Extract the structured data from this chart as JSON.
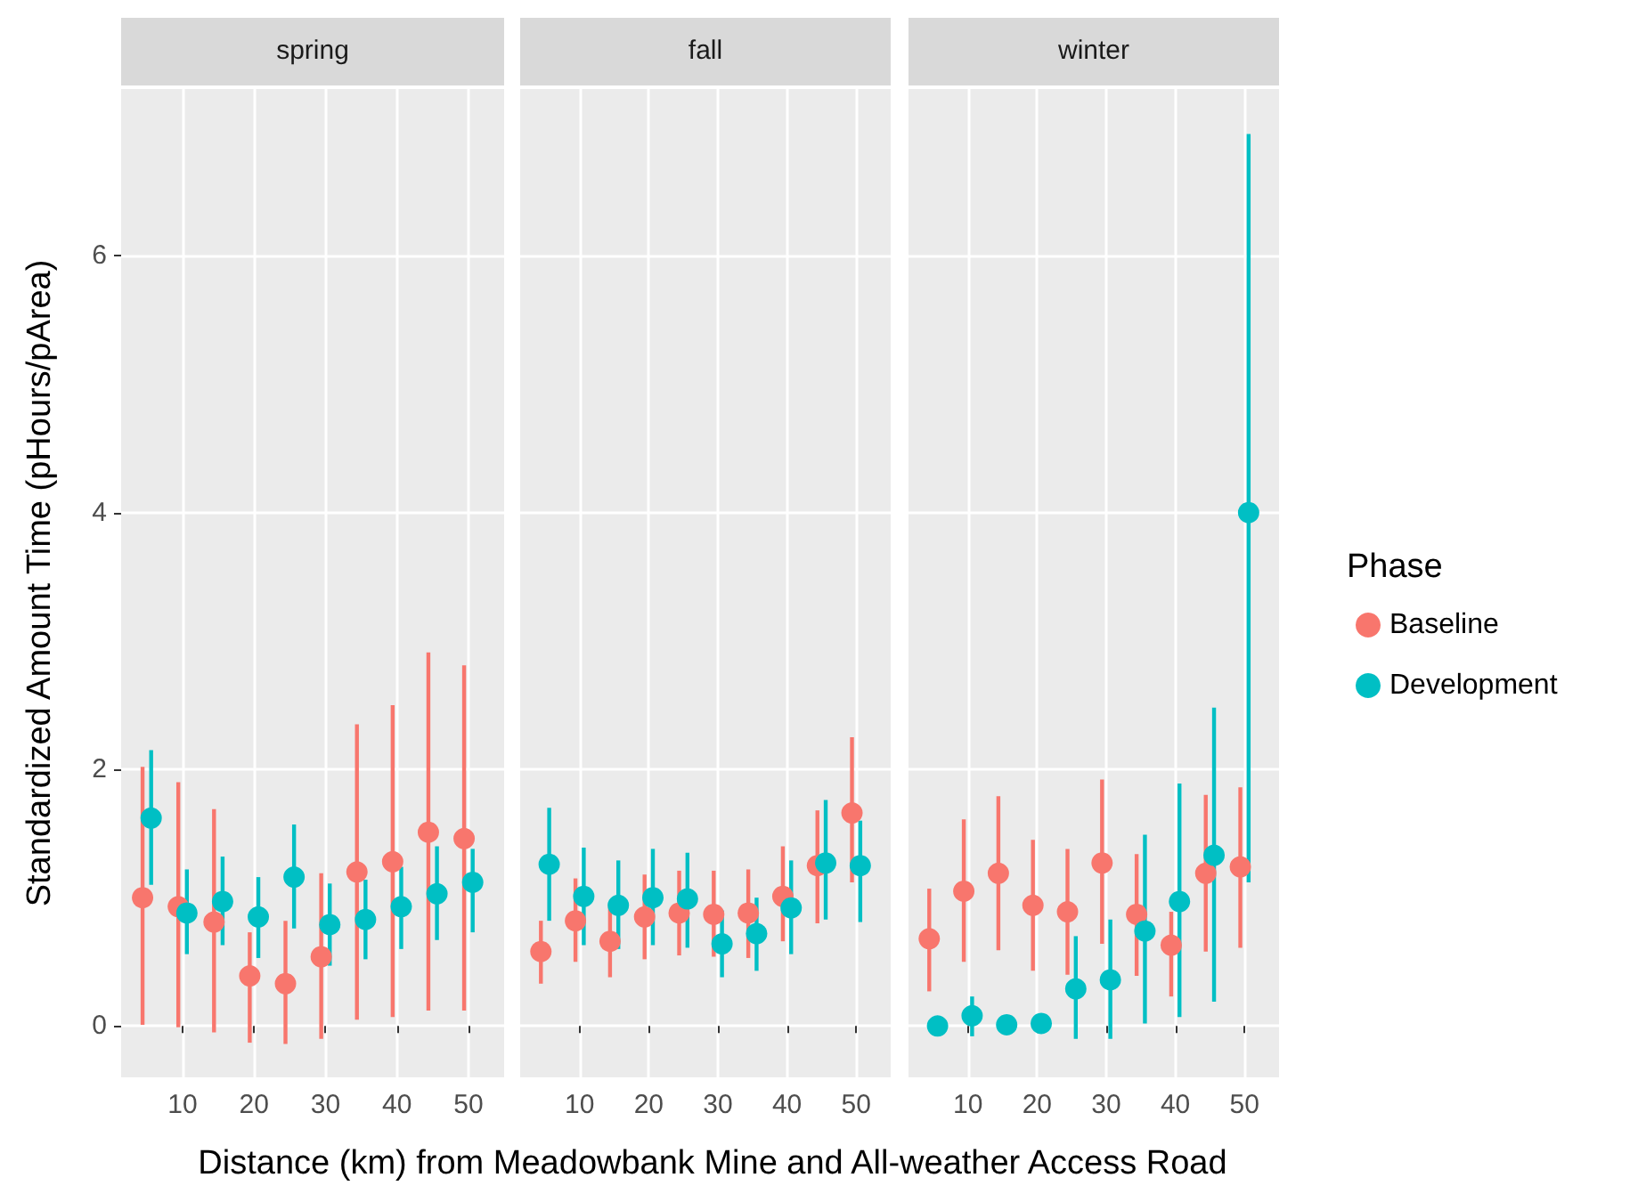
{
  "chart_data": [
    {
      "type": "scatter",
      "title": "spring",
      "ylabel": "Standardized Amount Time (pHours/pArea)",
      "xlim": [
        1.4,
        55
      ],
      "xticks": [
        10,
        20,
        30,
        40,
        50
      ],
      "ylim": [
        -0.4,
        7.3
      ],
      "yticks": [
        0,
        2,
        4,
        6
      ],
      "grid": true,
      "marker": "circle",
      "legend": false,
      "series": [
        {
          "color": "#f8766d",
          "x": [
            4.4,
            9.4,
            14.4,
            19.4,
            24.4,
            29.4,
            34.4,
            39.4,
            44.4,
            49.4
          ],
          "values": [
            1.0,
            0.93,
            0.81,
            0.39,
            0.33,
            0.54,
            1.2,
            1.28,
            1.51,
            1.46
          ],
          "errors": [
            [
              0.01,
              2.02
            ],
            [
              -0.01,
              1.9
            ],
            [
              -0.05,
              1.69
            ],
            [
              -0.13,
              0.73
            ],
            [
              -0.14,
              0.82
            ],
            [
              -0.1,
              1.19
            ],
            [
              0.05,
              2.35
            ],
            [
              0.07,
              2.5
            ],
            [
              0.12,
              2.91
            ],
            [
              0.12,
              2.81
            ]
          ]
        },
        {
          "color": "#00bfc4",
          "x": [
            5.6,
            10.6,
            15.6,
            20.6,
            25.6,
            30.6,
            35.6,
            40.6,
            45.6,
            50.6
          ],
          "values": [
            1.62,
            0.88,
            0.97,
            0.85,
            1.16,
            0.79,
            0.83,
            0.93,
            1.03,
            1.12
          ],
          "errors": [
            [
              1.1,
              2.15
            ],
            [
              0.56,
              1.22
            ],
            [
              0.63,
              1.32
            ],
            [
              0.53,
              1.16
            ],
            [
              0.76,
              1.57
            ],
            [
              0.47,
              1.11
            ],
            [
              0.52,
              1.14
            ],
            [
              0.6,
              1.24
            ],
            [
              0.67,
              1.4
            ],
            [
              0.73,
              1.38
            ]
          ]
        }
      ]
    },
    {
      "type": "scatter",
      "title": "fall",
      "xlabel": "Distance (km) from Meadowbank Mine and All-weather Access Road",
      "xlim": [
        1.4,
        55
      ],
      "xticks": [
        10,
        20,
        30,
        40,
        50
      ],
      "ylim": [
        -0.4,
        7.3
      ],
      "yticks": [
        0,
        2,
        4,
        6
      ],
      "tick_labels": "x",
      "grid": true,
      "marker": "circle",
      "legend": false,
      "series": [
        {
          "color": "#f8766d",
          "x": [
            4.4,
            9.4,
            14.4,
            19.4,
            24.4,
            29.4,
            34.4,
            39.4,
            44.4,
            49.4
          ],
          "values": [
            0.58,
            0.82,
            0.66,
            0.85,
            0.88,
            0.87,
            0.88,
            1.01,
            1.25,
            1.66
          ],
          "errors": [
            [
              0.33,
              0.82
            ],
            [
              0.5,
              1.15
            ],
            [
              0.38,
              0.95
            ],
            [
              0.52,
              1.18
            ],
            [
              0.55,
              1.21
            ],
            [
              0.54,
              1.21
            ],
            [
              0.53,
              1.22
            ],
            [
              0.66,
              1.4
            ],
            [
              0.8,
              1.68
            ],
            [
              1.12,
              2.25
            ]
          ]
        },
        {
          "color": "#00bfc4",
          "x": [
            5.6,
            10.6,
            15.6,
            20.6,
            25.6,
            30.6,
            35.6,
            40.6,
            45.6,
            50.6
          ],
          "values": [
            1.26,
            1.01,
            0.94,
            1.0,
            0.99,
            0.64,
            0.72,
            0.92,
            1.27,
            1.25
          ],
          "errors": [
            [
              0.82,
              1.7
            ],
            [
              0.63,
              1.39
            ],
            [
              0.6,
              1.29
            ],
            [
              0.63,
              1.38
            ],
            [
              0.61,
              1.35
            ],
            [
              0.38,
              0.9
            ],
            [
              0.43,
              1.0
            ],
            [
              0.56,
              1.29
            ],
            [
              0.83,
              1.76
            ],
            [
              0.81,
              1.6
            ]
          ]
        }
      ]
    },
    {
      "type": "scatter",
      "title": "winter",
      "legend_title": "Phase",
      "xlim": [
        1.4,
        55
      ],
      "xticks": [
        10,
        20,
        30,
        40,
        50
      ],
      "ylim": [
        -0.4,
        7.3
      ],
      "yticks": [
        0,
        2,
        4,
        6
      ],
      "tick_labels": "x",
      "grid": true,
      "marker": "circle",
      "legend": "right",
      "series": [
        {
          "name": "Baseline",
          "color": "#f8766d",
          "x": [
            4.4,
            9.4,
            14.4,
            19.4,
            24.4,
            29.4,
            34.4,
            39.4,
            44.4,
            49.4
          ],
          "values": [
            0.68,
            1.05,
            1.19,
            0.94,
            0.89,
            1.27,
            0.87,
            0.63,
            1.19,
            1.24
          ],
          "errors": [
            [
              0.27,
              1.07
            ],
            [
              0.5,
              1.61
            ],
            [
              0.59,
              1.79
            ],
            [
              0.43,
              1.45
            ],
            [
              0.4,
              1.38
            ],
            [
              0.64,
              1.92
            ],
            [
              0.39,
              1.34
            ],
            [
              0.23,
              0.89
            ],
            [
              0.58,
              1.8
            ],
            [
              0.61,
              1.86
            ]
          ]
        },
        {
          "name": "Development",
          "color": "#00bfc4",
          "x": [
            5.6,
            10.6,
            15.6,
            20.6,
            25.6,
            30.6,
            35.6,
            40.6,
            45.6,
            50.6
          ],
          "values": [
            0.0,
            0.08,
            0.01,
            0.02,
            0.29,
            0.36,
            0.74,
            0.97,
            1.33,
            4.0
          ],
          "errors": [
            null,
            [
              -0.08,
              0.23
            ],
            null,
            null,
            [
              -0.1,
              0.7
            ],
            [
              -0.1,
              0.83
            ],
            [
              0.02,
              1.49
            ],
            [
              0.07,
              1.89
            ],
            [
              0.19,
              2.48
            ],
            [
              1.12,
              6.95
            ]
          ]
        }
      ]
    }
  ]
}
